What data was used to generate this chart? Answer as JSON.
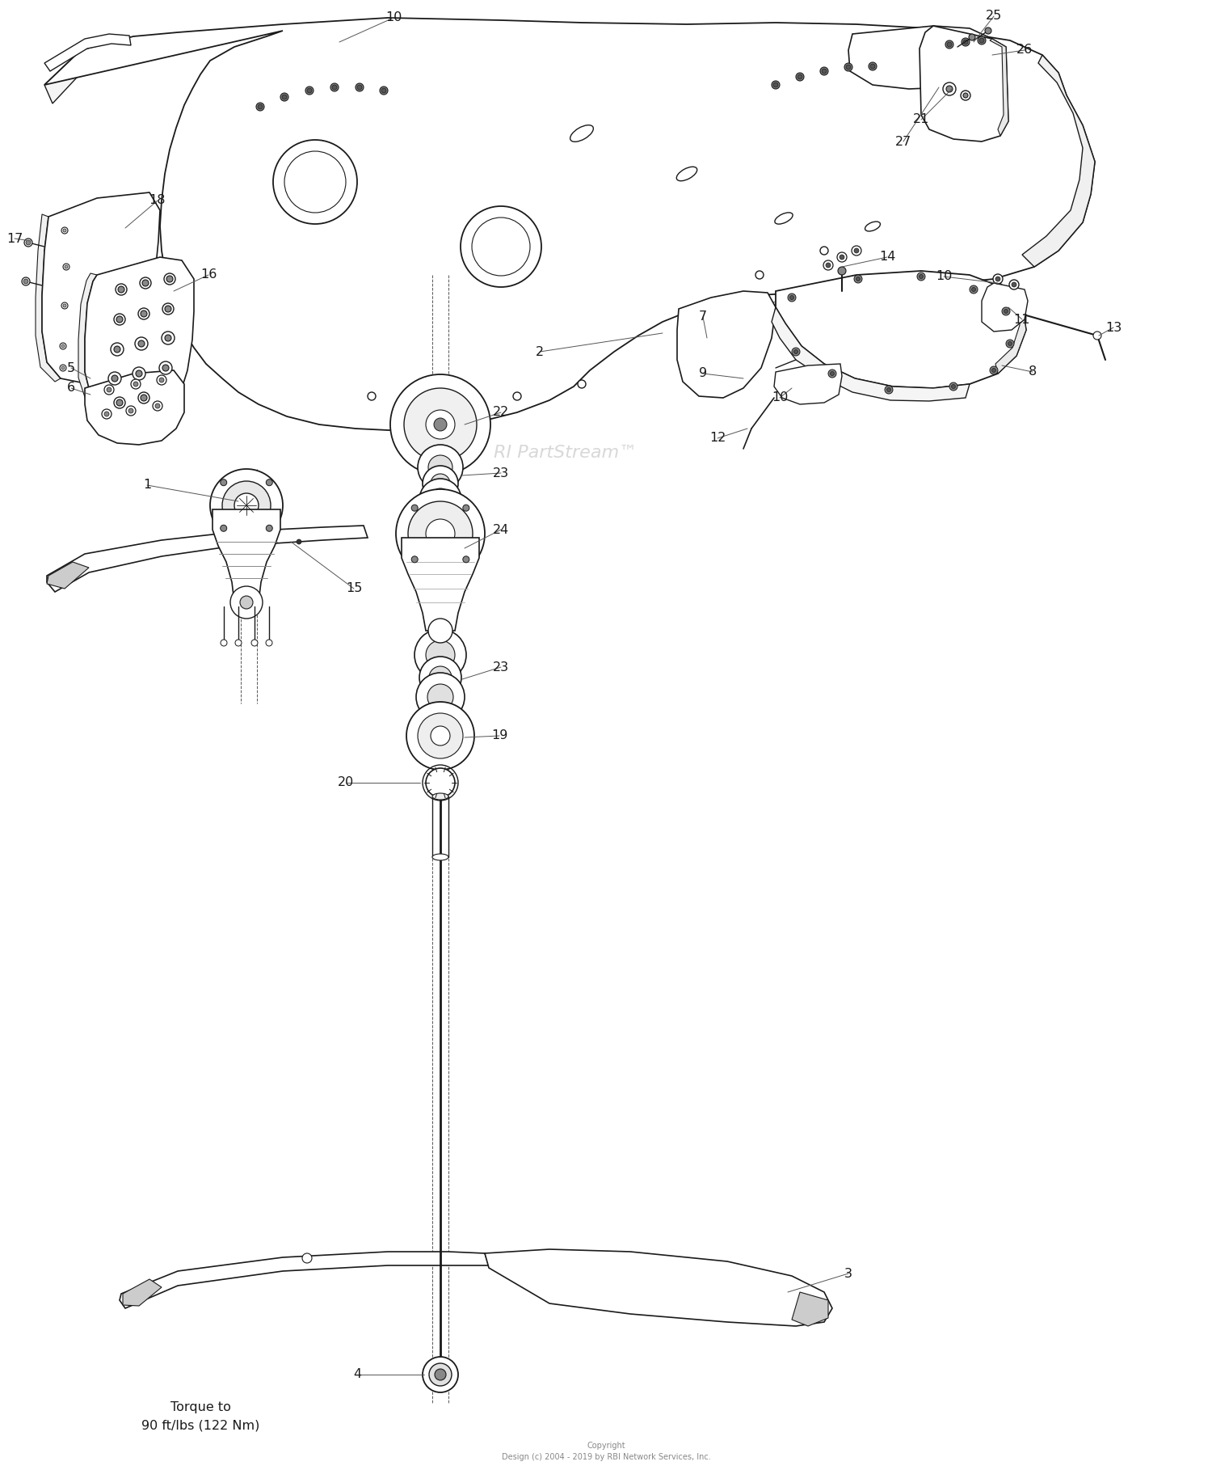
{
  "background_color": "#ffffff",
  "line_color": "#1a1a1a",
  "text_color": "#1a1a1a",
  "watermark": "RI PartStream™",
  "copyright": "Copyright\nDesign (c) 2004 - 2019 by RBI Network Services, Inc.",
  "torque_note": "Torque to\n90 ft/lbs (122 Nm)",
  "figsize": [
    15.0,
    18.18
  ],
  "dpi": 100
}
